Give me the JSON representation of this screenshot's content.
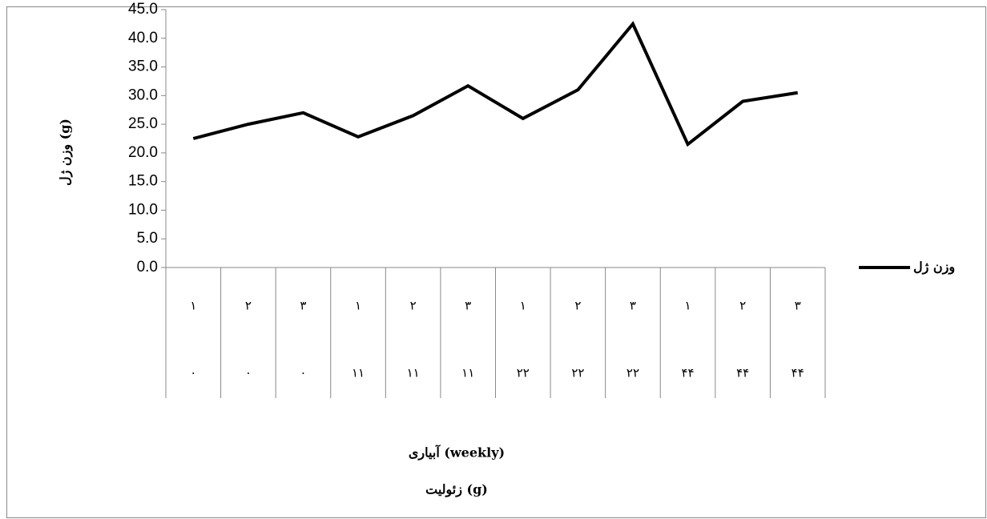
{
  "chart_data": {
    "type": "line",
    "y_label": "وزن ژل (g)",
    "x_label": [
      "آبیاری (weekly)",
      "زئولیت (g)"
    ],
    "categories": [
      "۱",
      "۲",
      "۳",
      "۱",
      "۲",
      "۳",
      "۱",
      "۲",
      "۳",
      "۱",
      "۲",
      "۳"
    ],
    "category_groups": [
      "۰",
      "۰",
      "۰",
      "۱۱",
      "۱۱",
      "۱۱",
      "۲۲",
      "۲۲",
      "۲۲",
      "۴۴",
      "۴۴",
      "۴۴"
    ],
    "series": [
      {
        "name": "وزن ژل",
        "color": "#000000",
        "values": [
          22.5,
          25,
          27,
          22.8,
          26.5,
          31.7,
          26,
          31,
          42.5,
          21.5,
          29,
          30.5
        ]
      }
    ],
    "ylim": [
      0,
      45
    ],
    "yticks": [
      {
        "value": 0,
        "label": "0.0"
      },
      {
        "value": 5,
        "label": "5.0"
      },
      {
        "value": 10,
        "label": "10.0"
      },
      {
        "value": 15,
        "label": "15.0"
      },
      {
        "value": 20,
        "label": "20.0"
      },
      {
        "value": 25,
        "label": "25.0"
      },
      {
        "value": 30,
        "label": "30.0"
      },
      {
        "value": 35,
        "label": "35.0"
      },
      {
        "value": 40,
        "label": "40.0"
      },
      {
        "value": 45,
        "label": "45.0"
      }
    ],
    "legend": "right"
  }
}
